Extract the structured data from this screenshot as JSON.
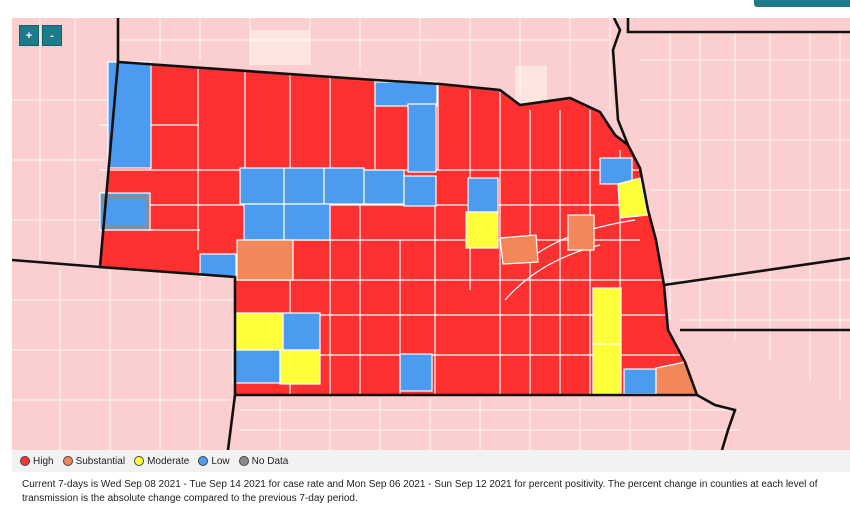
{
  "colors": {
    "high": "#ff3030",
    "substantial": "#f4875a",
    "moderate": "#ffff3a",
    "low": "#4b9cf0",
    "no_data": "#8c8c8c",
    "background_counties": "#fbcfcf",
    "faint_county": "#fde6e0",
    "accent": "#1f7a8c"
  },
  "zoom": {
    "in_label": "+",
    "out_label": "-"
  },
  "legend": {
    "items": [
      {
        "label": "High",
        "color": "#ff3030"
      },
      {
        "label": "Substantial",
        "color": "#f4875a"
      },
      {
        "label": "Moderate",
        "color": "#ffff3a"
      },
      {
        "label": "Low",
        "color": "#4b9cf0"
      },
      {
        "label": "No Data",
        "color": "#8c8c8c"
      }
    ]
  },
  "caption": "Current 7-days is Wed Sep 08 2021 - Tue Sep 14 2021 for case rate and Mon Sep 06 2021 - Sun Sep 12 2021 for percent positivity. The percent change in counties at each level of transmission is the absolute change compared to the previous 7-day period."
}
